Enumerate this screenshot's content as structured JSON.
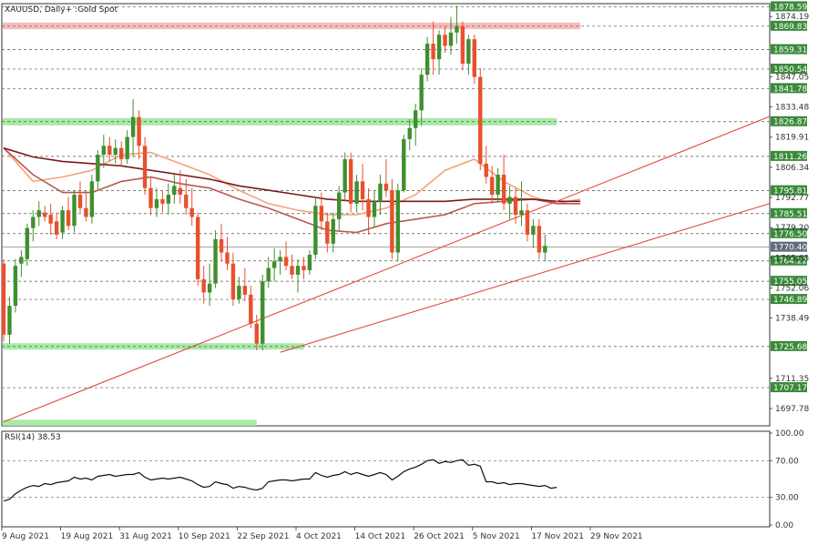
{
  "chart_data": {
    "type": "candlestick",
    "title": "XAUUSD, Daily+ :Gold Spot",
    "x_tick_labels": [
      "9 Aug 2021",
      "19 Aug 2021",
      "31 Aug 2021",
      "10 Sep 2021",
      "22 Sep 2021",
      "4 Oct 2021",
      "14 Oct 2021",
      "26 Oct 2021",
      "5 Nov 2021",
      "17 Nov 2021",
      "29 Nov 2021"
    ],
    "y_tick_labels": [
      "1874.19",
      "1847.05",
      "1833.48",
      "1819.91",
      "1806.34",
      "1792.77",
      "1779.20",
      "1765.63",
      "1752.06",
      "1738.49",
      "1711.35",
      "1697.78"
    ],
    "ylim": [
      1690,
      1880
    ],
    "level_lines": [
      "1878.59",
      "1869.83",
      "1859.31",
      "1850.54",
      "1841.78",
      "1826.87",
      "1811.26",
      "1795.81",
      "1785.51",
      "1776.50",
      "1770.40",
      "1764.22",
      "1755.05",
      "1746.89",
      "1725.68",
      "1707.17"
    ],
    "zones": [
      {
        "from_value": 1868.5,
        "to_value": 1871.5,
        "start_index": 0,
        "end_index": 98,
        "color": "#f5b6b6"
      },
      {
        "from_value": 1825.2,
        "to_value": 1828.5,
        "start_index": 0,
        "end_index": 94,
        "color": "#9ee89e"
      },
      {
        "from_value": 1724.3,
        "to_value": 1727.2,
        "start_index": 0,
        "end_index": 51,
        "color": "#9ee89e"
      },
      {
        "from_value": 1690,
        "to_value": 1692.7,
        "start_index": 0,
        "end_index": 43,
        "color": "#9ee89e"
      }
    ],
    "trendlines": [
      {
        "from": [
          0,
          1691.8
        ],
        "to": [
          135,
          1834.3
        ]
      },
      {
        "from": [
          47,
          1723.1
        ],
        "to": [
          135,
          1793.9
        ]
      }
    ],
    "candles": [
      [
        1763,
        1765,
        1728,
        1731
      ],
      [
        1731,
        1748,
        1727,
        1744
      ],
      [
        1744,
        1765,
        1741,
        1762
      ],
      [
        1763,
        1769,
        1757,
        1766
      ],
      [
        1765,
        1781,
        1762,
        1779
      ],
      [
        1779,
        1787,
        1773,
        1784
      ],
      [
        1784,
        1791,
        1780,
        1787
      ],
      [
        1786,
        1789,
        1782,
        1784
      ],
      [
        1785,
        1790,
        1776,
        1781
      ],
      [
        1782,
        1786,
        1774,
        1776
      ],
      [
        1777,
        1789,
        1774,
        1787
      ],
      [
        1787,
        1793,
        1778,
        1780
      ],
      [
        1780,
        1796,
        1777,
        1794
      ],
      [
        1794,
        1800,
        1786,
        1788
      ],
      [
        1788,
        1796,
        1782,
        1784
      ],
      [
        1784,
        1803,
        1781,
        1800
      ],
      [
        1800,
        1814,
        1796,
        1812
      ],
      [
        1812,
        1821,
        1806,
        1816
      ],
      [
        1816,
        1820,
        1809,
        1812
      ],
      [
        1812,
        1819,
        1808,
        1815
      ],
      [
        1815,
        1818,
        1807,
        1810
      ],
      [
        1810,
        1823,
        1808,
        1820
      ],
      [
        1820,
        1837,
        1811,
        1829
      ],
      [
        1829,
        1832,
        1810,
        1816
      ],
      [
        1816,
        1820,
        1794,
        1797
      ],
      [
        1797,
        1802,
        1785,
        1788
      ],
      [
        1788,
        1797,
        1784,
        1792
      ],
      [
        1792,
        1796,
        1786,
        1790
      ],
      [
        1790,
        1799,
        1785,
        1794
      ],
      [
        1794,
        1803,
        1790,
        1798
      ],
      [
        1797,
        1805,
        1790,
        1794
      ],
      [
        1794,
        1801,
        1785,
        1788
      ],
      [
        1788,
        1797,
        1780,
        1784
      ],
      [
        1784,
        1786,
        1753,
        1756
      ],
      [
        1756,
        1762,
        1745,
        1750
      ],
      [
        1750,
        1763,
        1744,
        1754
      ],
      [
        1754,
        1778,
        1752,
        1774
      ],
      [
        1774,
        1781,
        1764,
        1768
      ],
      [
        1768,
        1775,
        1760,
        1763
      ],
      [
        1763,
        1768,
        1744,
        1747
      ],
      [
        1747,
        1757,
        1745,
        1753
      ],
      [
        1753,
        1761,
        1746,
        1749
      ],
      [
        1749,
        1753,
        1734,
        1736
      ],
      [
        1736,
        1740,
        1724,
        1727
      ],
      [
        1727,
        1758,
        1724,
        1755
      ],
      [
        1755,
        1766,
        1752,
        1761
      ],
      [
        1761,
        1770,
        1755,
        1764
      ],
      [
        1764,
        1769,
        1758,
        1766
      ],
      [
        1766,
        1773,
        1760,
        1762
      ],
      [
        1762,
        1767,
        1756,
        1758
      ],
      [
        1758,
        1765,
        1750,
        1762
      ],
      [
        1762,
        1766,
        1756,
        1760
      ],
      [
        1760,
        1769,
        1758,
        1767
      ],
      [
        1767,
        1793,
        1765,
        1789
      ],
      [
        1789,
        1795,
        1778,
        1782
      ],
      [
        1782,
        1786,
        1768,
        1772
      ],
      [
        1772,
        1786,
        1768,
        1783
      ],
      [
        1783,
        1798,
        1778,
        1795
      ],
      [
        1795,
        1813,
        1791,
        1810
      ],
      [
        1810,
        1813,
        1786,
        1790
      ],
      [
        1790,
        1803,
        1786,
        1800
      ],
      [
        1800,
        1808,
        1787,
        1792
      ],
      [
        1792,
        1797,
        1776,
        1784
      ],
      [
        1784,
        1796,
        1779,
        1791
      ],
      [
        1791,
        1803,
        1785,
        1799
      ],
      [
        1799,
        1810,
        1793,
        1796
      ],
      [
        1796,
        1801,
        1765,
        1768
      ],
      [
        1768,
        1799,
        1764,
        1796
      ],
      [
        1796,
        1821,
        1795,
        1819
      ],
      [
        1819,
        1828,
        1814,
        1824
      ],
      [
        1824,
        1835,
        1816,
        1832
      ],
      [
        1832,
        1851,
        1825,
        1848
      ],
      [
        1848,
        1865,
        1845,
        1862
      ],
      [
        1862,
        1872,
        1848,
        1855
      ],
      [
        1855,
        1868,
        1848,
        1866
      ],
      [
        1866,
        1870,
        1858,
        1861
      ],
      [
        1861,
        1874,
        1857,
        1867
      ],
      [
        1867,
        1879,
        1862,
        1870
      ],
      [
        1870,
        1872,
        1850,
        1853
      ],
      [
        1853,
        1866,
        1848,
        1864
      ],
      [
        1864,
        1866,
        1844,
        1847
      ],
      [
        1847,
        1851,
        1805,
        1808
      ],
      [
        1808,
        1816,
        1799,
        1802
      ],
      [
        1802,
        1807,
        1790,
        1794
      ],
      [
        1794,
        1806,
        1791,
        1803
      ],
      [
        1803,
        1812,
        1787,
        1790
      ],
      [
        1790,
        1798,
        1783,
        1793
      ],
      [
        1793,
        1797,
        1781,
        1785
      ],
      [
        1785,
        1800,
        1780,
        1787
      ],
      [
        1787,
        1790,
        1773,
        1776
      ],
      [
        1776,
        1783,
        1770,
        1780
      ],
      [
        1780,
        1783,
        1765,
        1768
      ],
      [
        1768,
        1776,
        1764,
        1771
      ]
    ],
    "series": [
      {
        "name": "",
        "color": "#f4a37a",
        "points": [
          [
            0,
            1815
          ],
          [
            5,
            1800
          ],
          [
            10,
            1802
          ],
          [
            15,
            1805
          ],
          [
            20,
            1812
          ],
          [
            25,
            1813
          ],
          [
            30,
            1808
          ],
          [
            35,
            1803
          ],
          [
            40,
            1796
          ],
          [
            45,
            1790
          ],
          [
            50,
            1787
          ],
          [
            55,
            1785
          ],
          [
            60,
            1785
          ],
          [
            65,
            1788
          ],
          [
            70,
            1794
          ],
          [
            75,
            1805
          ],
          [
            80,
            1810
          ],
          [
            85,
            1800
          ],
          [
            90,
            1793
          ],
          [
            94,
            1790
          ],
          [
            98,
            1792
          ]
        ]
      },
      {
        "name": "",
        "color": "#b85a50",
        "points": [
          [
            0,
            1815
          ],
          [
            5,
            1803
          ],
          [
            10,
            1795
          ],
          [
            15,
            1795
          ],
          [
            20,
            1800
          ],
          [
            25,
            1802
          ],
          [
            30,
            1799
          ],
          [
            35,
            1797
          ],
          [
            40,
            1792
          ],
          [
            45,
            1788
          ],
          [
            50,
            1783
          ],
          [
            55,
            1778
          ],
          [
            60,
            1777
          ],
          [
            65,
            1781
          ],
          [
            70,
            1783
          ],
          [
            75,
            1785
          ],
          [
            80,
            1790
          ],
          [
            85,
            1791
          ],
          [
            90,
            1792
          ],
          [
            94,
            1790
          ],
          [
            98,
            1790
          ]
        ]
      },
      {
        "name": "",
        "color": "#7a1a1a",
        "points": [
          [
            0,
            1815
          ],
          [
            5,
            1811
          ],
          [
            10,
            1809
          ],
          [
            15,
            1808
          ],
          [
            20,
            1807
          ],
          [
            25,
            1805
          ],
          [
            30,
            1803
          ],
          [
            35,
            1801
          ],
          [
            40,
            1798
          ],
          [
            45,
            1796
          ],
          [
            50,
            1794
          ],
          [
            55,
            1792
          ],
          [
            60,
            1791
          ],
          [
            65,
            1791
          ],
          [
            70,
            1791
          ],
          [
            75,
            1791
          ],
          [
            80,
            1792
          ],
          [
            85,
            1792
          ],
          [
            90,
            1792
          ],
          [
            94,
            1791
          ],
          [
            98,
            1791
          ]
        ]
      }
    ]
  },
  "rsi": {
    "label": "RSI(14) 38.53",
    "tick_labels": [
      "100.00",
      "70.00",
      "30.00",
      "0.00"
    ],
    "ylim": [
      -2,
      102
    ],
    "levels": [
      70,
      30
    ],
    "values": [
      26,
      28,
      34,
      38,
      41,
      43,
      42,
      45,
      44,
      46,
      47,
      48,
      52,
      50,
      51,
      49,
      53,
      54,
      55,
      53,
      54,
      55,
      55,
      57,
      52,
      49,
      50,
      51,
      50,
      51,
      52,
      50,
      48,
      44,
      41,
      42,
      47,
      45,
      44,
      40,
      42,
      41,
      39,
      38,
      40,
      47,
      48,
      49,
      49,
      48,
      49,
      50,
      50,
      57,
      54,
      52,
      54,
      55,
      58,
      55,
      57,
      55,
      53,
      55,
      57,
      55,
      49,
      53,
      58,
      61,
      63,
      66,
      70,
      71,
      67,
      69,
      68,
      70,
      71,
      65,
      66,
      64,
      47,
      47,
      45,
      46,
      44,
      45,
      45,
      44,
      43,
      42,
      43,
      40,
      41
    ]
  }
}
